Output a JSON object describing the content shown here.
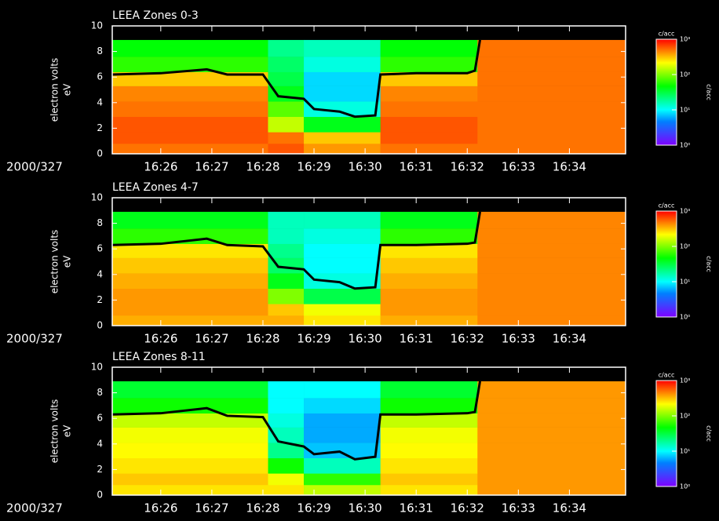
{
  "chart_data": [
    {
      "type": "heatmap",
      "title": "LEEA Zones 0-3",
      "date_label": "2000/327",
      "ylabel": "electron volts",
      "ylabel_unit": "eV",
      "xlim": [
        985.05,
        995.1
      ],
      "xticks": [
        {
          "value": 986,
          "label": "16:26"
        },
        {
          "value": 987,
          "label": "16:27"
        },
        {
          "value": 988,
          "label": "16:28"
        },
        {
          "value": 989,
          "label": "16:29"
        },
        {
          "value": 990,
          "label": "16:30"
        },
        {
          "value": 991,
          "label": "16:31"
        },
        {
          "value": 992,
          "label": "16:32"
        },
        {
          "value": 993,
          "label": "16:33"
        },
        {
          "value": 994,
          "label": "16:34"
        }
      ],
      "ylim": [
        0,
        10
      ],
      "yticks": [
        0,
        2,
        4,
        6,
        8,
        10
      ],
      "x_bins": [
        985.05,
        988.1,
        988.8,
        990.3,
        992.2,
        995.1
      ],
      "y_bins": [
        0,
        0.8,
        1.7,
        2.9,
        4.1,
        5.3,
        6.4,
        7.6,
        8.9
      ],
      "z": [
        [
          500,
          600,
          400,
          500,
          500
        ],
        [
          600,
          500,
          300,
          600,
          500
        ],
        [
          600,
          150,
          40,
          600,
          500
        ],
        [
          500,
          80,
          12,
          500,
          500
        ],
        [
          450,
          40,
          8,
          450,
          500
        ],
        [
          300,
          30,
          8,
          300,
          500
        ],
        [
          60,
          25,
          12,
          60,
          500
        ],
        [
          45,
          20,
          15,
          45,
          500
        ]
      ],
      "line": {
        "color": "#000000",
        "x": [
          985.05,
          986,
          986.9,
          987.3,
          988,
          988.3,
          988.8,
          989,
          989.5,
          989.8,
          990.2,
          990.3,
          991,
          992,
          992.15,
          992.25
        ],
        "y": [
          6.2,
          6.3,
          6.6,
          6.2,
          6.2,
          4.5,
          4.3,
          3.5,
          3.3,
          2.9,
          3.0,
          6.2,
          6.3,
          6.3,
          6.5,
          8.9
        ]
      },
      "colorbar": {
        "label": "c/acc",
        "zlim": [
          1,
          1000
        ],
        "log": true,
        "ticks": [
          {
            "value": 1000,
            "label": "10³"
          },
          {
            "value": 100,
            "label": "10²"
          },
          {
            "value": 10,
            "label": "10¹"
          },
          {
            "value": 1,
            "label": "10⁰"
          }
        ]
      }
    },
    {
      "type": "heatmap",
      "title": "LEEA Zones 4-7",
      "date_label": "2000/327",
      "ylabel": "electron volts",
      "ylabel_unit": "eV",
      "xlim": [
        985.05,
        995.1
      ],
      "xticks": [
        {
          "value": 986,
          "label": "16:26"
        },
        {
          "value": 987,
          "label": "16:27"
        },
        {
          "value": 988,
          "label": "16:28"
        },
        {
          "value": 989,
          "label": "16:29"
        },
        {
          "value": 990,
          "label": "16:30"
        },
        {
          "value": 991,
          "label": "16:31"
        },
        {
          "value": 992,
          "label": "16:32"
        },
        {
          "value": 993,
          "label": "16:33"
        },
        {
          "value": 994,
          "label": "16:34"
        }
      ],
      "ylim": [
        0,
        10
      ],
      "yticks": [
        0,
        2,
        4,
        6,
        8,
        10
      ],
      "x_bins": [
        985.05,
        988.1,
        988.8,
        990.3,
        992.2,
        995.1
      ],
      "y_bins": [
        0,
        0.8,
        1.7,
        2.9,
        4.1,
        5.3,
        6.4,
        7.6,
        8.9
      ],
      "z": [
        [
          350,
          350,
          250,
          350,
          450
        ],
        [
          400,
          300,
          200,
          400,
          450
        ],
        [
          400,
          100,
          30,
          400,
          450
        ],
        [
          350,
          40,
          12,
          350,
          450
        ],
        [
          300,
          25,
          10,
          300,
          450
        ],
        [
          250,
          20,
          10,
          250,
          450
        ],
        [
          60,
          15,
          12,
          60,
          450
        ],
        [
          40,
          15,
          15,
          40,
          450
        ]
      ],
      "line": {
        "color": "#000000",
        "x": [
          985.05,
          986,
          986.9,
          987.3,
          988,
          988.3,
          988.8,
          989,
          989.5,
          989.8,
          990.2,
          990.3,
          991,
          992,
          992.15,
          992.25
        ],
        "y": [
          6.3,
          6.4,
          6.8,
          6.3,
          6.2,
          4.6,
          4.4,
          3.6,
          3.4,
          2.9,
          3.0,
          6.3,
          6.3,
          6.4,
          6.5,
          8.9
        ]
      },
      "colorbar": {
        "label": "c/acc",
        "zlim": [
          1,
          1000
        ],
        "log": true,
        "ticks": [
          {
            "value": 1000,
            "label": "10³"
          },
          {
            "value": 100,
            "label": "10²"
          },
          {
            "value": 10,
            "label": "10¹"
          },
          {
            "value": 1,
            "label": "10⁰"
          }
        ]
      }
    },
    {
      "type": "heatmap",
      "title": "LEEA Zones 8-11",
      "date_label": "2000/327",
      "ylabel": "electron volts",
      "ylabel_unit": "eV",
      "xlim": [
        985.05,
        995.1
      ],
      "xticks": [
        {
          "value": 986,
          "label": "16:26"
        },
        {
          "value": 987,
          "label": "16:27"
        },
        {
          "value": 988,
          "label": "16:28"
        },
        {
          "value": 989,
          "label": "16:29"
        },
        {
          "value": 990,
          "label": "16:30"
        },
        {
          "value": 991,
          "label": "16:31"
        },
        {
          "value": 992,
          "label": "16:32"
        },
        {
          "value": 993,
          "label": "16:33"
        },
        {
          "value": 994,
          "label": "16:34"
        }
      ],
      "ylim": [
        0,
        10
      ],
      "yticks": [
        0,
        2,
        4,
        6,
        8,
        10
      ],
      "x_bins": [
        985.05,
        988.1,
        988.8,
        990.3,
        992.2,
        995.1
      ],
      "y_bins": [
        0,
        0.8,
        1.7,
        2.9,
        4.1,
        5.3,
        6.4,
        7.6,
        8.9
      ],
      "z": [
        [
          250,
          250,
          150,
          250,
          400
        ],
        [
          300,
          200,
          60,
          300,
          400
        ],
        [
          250,
          50,
          15,
          250,
          400
        ],
        [
          220,
          20,
          7,
          220,
          400
        ],
        [
          200,
          15,
          6,
          200,
          400
        ],
        [
          150,
          12,
          6,
          150,
          400
        ],
        [
          50,
          10,
          8,
          50,
          400
        ],
        [
          35,
          10,
          10,
          35,
          400
        ]
      ],
      "line": {
        "color": "#000000",
        "x": [
          985.05,
          986,
          986.9,
          987.3,
          988,
          988.3,
          988.8,
          989,
          989.5,
          989.8,
          990.2,
          990.3,
          991,
          992,
          992.15,
          992.25
        ],
        "y": [
          6.3,
          6.4,
          6.8,
          6.2,
          6.1,
          4.2,
          3.8,
          3.2,
          3.4,
          2.8,
          3.0,
          6.3,
          6.3,
          6.4,
          6.5,
          8.9
        ]
      },
      "colorbar": {
        "label": "c/acc",
        "zlim": [
          1,
          1000
        ],
        "log": true,
        "ticks": [
          {
            "value": 1000,
            "label": "10³"
          },
          {
            "value": 100,
            "label": "10²"
          },
          {
            "value": 10,
            "label": "10¹"
          },
          {
            "value": 1,
            "label": "10⁰"
          }
        ]
      }
    }
  ]
}
